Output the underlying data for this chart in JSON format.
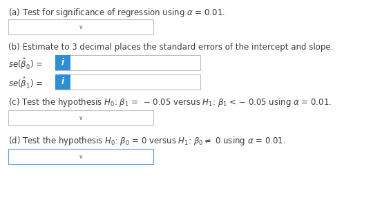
{
  "background_color": "#ffffff",
  "text_color": "#3a3a3a",
  "line_a": "(a) Test for significance of regression using $\\alpha$ = 0.01.",
  "line_b": "(b) Estimate to 3 decimal places the standard errors of the intercept and slope.",
  "label_se0": "$se(\\hat{\\beta}_0)$ =",
  "label_se1": "$se(\\hat{\\beta}_1)$ =",
  "line_c": "(c) Test the hypothesis $H_0$: $\\beta_1$ =  − 0.05 versus $H_1$: $\\beta_1$ < − 0.05 using $\\alpha$ = 0.01.",
  "line_d": "(d) Test the hypothesis $H_0$: $\\beta_0$ = 0 versus $H_1$: $\\beta_0 \\neq$ 0 using $\\alpha$ = 0.01.",
  "box_bg": "#ffffff",
  "box_border_gray": "#c0c0c0",
  "box_border_blue": "#5b9bd5",
  "i_bg": "#2e8fd4",
  "i_text": "#ffffff",
  "chevron": "∨",
  "font_size": 8.5,
  "font_size_small": 7.5
}
